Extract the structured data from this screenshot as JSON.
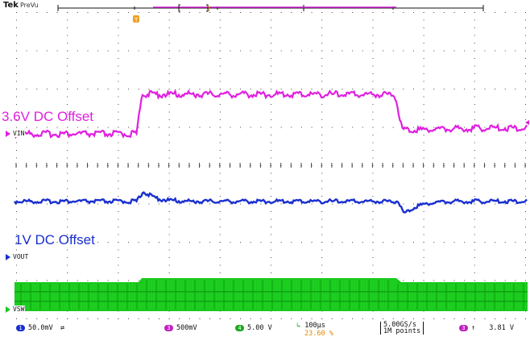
{
  "header": {
    "brand": "Tek",
    "mode": "PreVu"
  },
  "overlays": {
    "offset_top": "3.6V DC Offset",
    "offset_bottom": "1V DC Offset"
  },
  "channels": {
    "vin": {
      "label": "VIN",
      "color": "#e020e0"
    },
    "vout": {
      "label": "VOUT",
      "color": "#1a2fd0"
    },
    "vsw": {
      "label": "VSW",
      "color": "#19c81c"
    }
  },
  "status": {
    "ch1": {
      "num": "1",
      "scale": "50.0mV",
      "coupling": "⇄",
      "color": "#1a2fd0"
    },
    "ch3": {
      "num": "3",
      "scale": "500mV",
      "color": "#c020c0"
    },
    "ch4": {
      "num": "4",
      "scale": "5.00 V",
      "color": "#19a81c"
    },
    "timebase": "100µs",
    "trigger_pos": "23.60 %",
    "sample_rate": "5.00GS/s",
    "record_length": "1M points",
    "trigger_source": "3",
    "trigger_slope": "↑",
    "trigger_level": "3.81 V"
  }
}
